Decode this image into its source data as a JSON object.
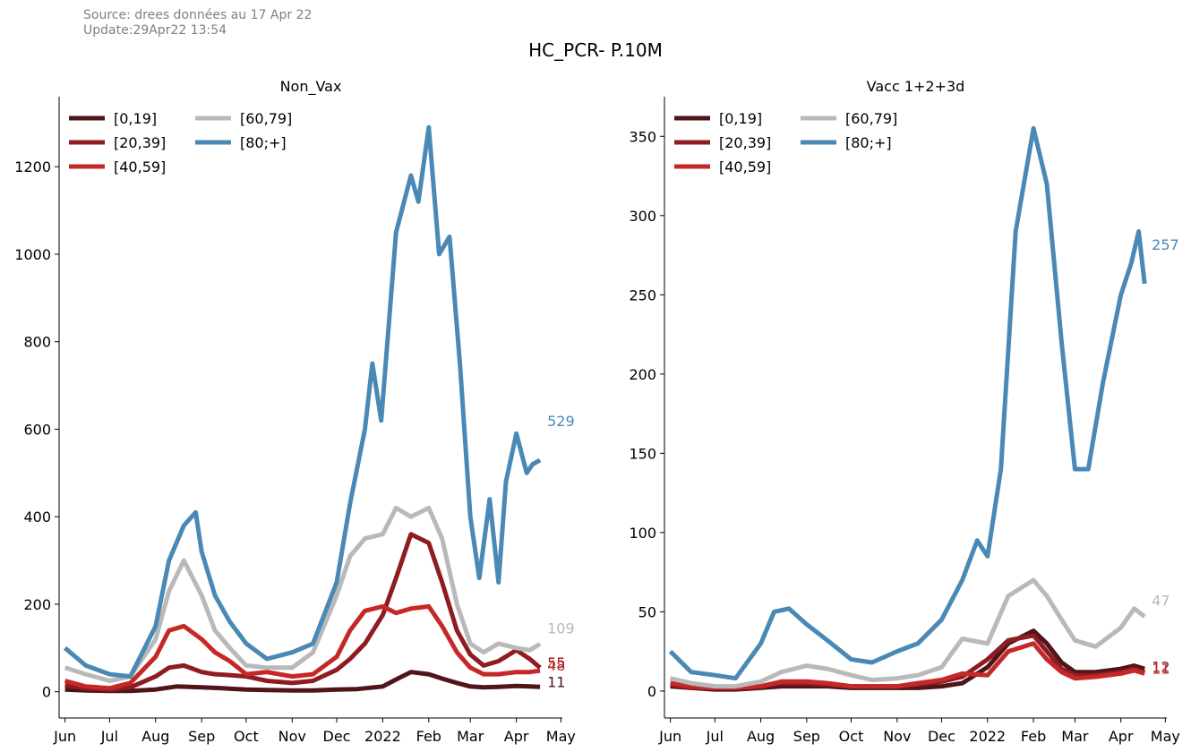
{
  "header": {
    "source_line": "Source: drees données au 17 Apr 22",
    "update_line": "Update:29Apr22 13:54",
    "title": "HC_PCR- P.10M"
  },
  "colors": {
    "[0,19]": "#4f1519",
    "[20,39]": "#8e1c21",
    "[40,59]": "#c62828",
    "[60,79]": "#b9b9b9",
    "[80;+]": "#4a89b5"
  },
  "chart_data": [
    {
      "type": "line",
      "title": "Non_Vax",
      "x_tick_labels": [
        "Jun",
        "Jul",
        "Aug",
        "Sep",
        "Oct",
        "Nov",
        "Dec",
        "2022",
        "Feb",
        "Mar",
        "Apr",
        "May"
      ],
      "x_range": [
        "2021-05-28",
        "2022-05-02"
      ],
      "y_ticks": [
        0,
        200,
        400,
        600,
        800,
        1000,
        1200
      ],
      "ylim": [
        -60,
        1360
      ],
      "legend_position": "top-left",
      "grid": false,
      "series": [
        {
          "name": "[0,19]",
          "end_label": "11",
          "x": [
            "2021-06-01",
            "2021-06-15",
            "2021-07-01",
            "2021-07-15",
            "2021-08-01",
            "2021-08-15",
            "2021-09-01",
            "2021-09-15",
            "2021-10-01",
            "2021-10-15",
            "2021-11-01",
            "2021-11-15",
            "2021-12-01",
            "2021-12-15",
            "2022-01-01",
            "2022-01-10",
            "2022-01-20",
            "2022-02-01",
            "2022-02-10",
            "2022-02-20",
            "2022-03-01",
            "2022-03-10",
            "2022-03-20",
            "2022-04-01",
            "2022-04-10",
            "2022-04-17"
          ],
          "y": [
            5,
            3,
            2,
            2,
            5,
            12,
            10,
            8,
            5,
            4,
            3,
            3,
            5,
            6,
            12,
            28,
            45,
            40,
            30,
            20,
            12,
            10,
            11,
            13,
            12,
            11
          ]
        },
        {
          "name": "[20,39]",
          "end_label": "55",
          "x": [
            "2021-06-01",
            "2021-06-15",
            "2021-07-01",
            "2021-07-15",
            "2021-08-01",
            "2021-08-10",
            "2021-08-20",
            "2021-09-01",
            "2021-09-10",
            "2021-09-20",
            "2021-10-01",
            "2021-10-15",
            "2021-11-01",
            "2021-11-15",
            "2021-12-01",
            "2021-12-10",
            "2021-12-20",
            "2022-01-01",
            "2022-01-10",
            "2022-01-20",
            "2022-02-01",
            "2022-02-10",
            "2022-02-20",
            "2022-03-01",
            "2022-03-10",
            "2022-03-20",
            "2022-04-01",
            "2022-04-10",
            "2022-04-17"
          ],
          "y": [
            15,
            8,
            5,
            10,
            35,
            55,
            60,
            45,
            40,
            38,
            35,
            25,
            20,
            25,
            50,
            75,
            110,
            175,
            260,
            360,
            340,
            250,
            140,
            85,
            60,
            70,
            95,
            75,
            55
          ]
        },
        {
          "name": "[40,59]",
          "end_label": "48",
          "x": [
            "2021-06-01",
            "2021-06-15",
            "2021-07-01",
            "2021-07-15",
            "2021-08-01",
            "2021-08-10",
            "2021-08-20",
            "2021-09-01",
            "2021-09-10",
            "2021-09-20",
            "2021-10-01",
            "2021-10-15",
            "2021-11-01",
            "2021-11-15",
            "2021-12-01",
            "2021-12-10",
            "2021-12-20",
            "2022-01-01",
            "2022-01-10",
            "2022-01-20",
            "2022-02-01",
            "2022-02-10",
            "2022-02-20",
            "2022-03-01",
            "2022-03-10",
            "2022-03-20",
            "2022-04-01",
            "2022-04-10",
            "2022-04-17"
          ],
          "y": [
            25,
            12,
            8,
            20,
            80,
            140,
            150,
            120,
            90,
            70,
            40,
            45,
            35,
            40,
            80,
            140,
            185,
            195,
            180,
            190,
            195,
            150,
            90,
            55,
            40,
            40,
            45,
            45,
            48
          ]
        },
        {
          "name": "[60,79]",
          "end_label": "109",
          "x": [
            "2021-06-01",
            "2021-06-15",
            "2021-07-01",
            "2021-07-15",
            "2021-08-01",
            "2021-08-10",
            "2021-08-20",
            "2021-09-01",
            "2021-09-10",
            "2021-09-20",
            "2021-10-01",
            "2021-10-15",
            "2021-11-01",
            "2021-11-15",
            "2021-12-01",
            "2021-12-10",
            "2021-12-20",
            "2022-01-01",
            "2022-01-10",
            "2022-01-20",
            "2022-02-01",
            "2022-02-10",
            "2022-02-20",
            "2022-03-01",
            "2022-03-10",
            "2022-03-20",
            "2022-04-01",
            "2022-04-10",
            "2022-04-17"
          ],
          "y": [
            55,
            40,
            25,
            35,
            120,
            230,
            300,
            220,
            140,
            100,
            60,
            55,
            55,
            90,
            220,
            310,
            350,
            360,
            420,
            400,
            420,
            350,
            200,
            110,
            90,
            110,
            100,
            95,
            109
          ]
        },
        {
          "name": "[80;+]",
          "end_label": "529",
          "x": [
            "2021-06-01",
            "2021-06-15",
            "2021-07-01",
            "2021-07-15",
            "2021-08-01",
            "2021-08-10",
            "2021-08-20",
            "2021-08-28",
            "2021-09-01",
            "2021-09-10",
            "2021-09-20",
            "2021-10-01",
            "2021-10-15",
            "2021-11-01",
            "2021-11-15",
            "2021-12-01",
            "2021-12-10",
            "2021-12-20",
            "2021-12-25",
            "2021-12-31",
            "2022-01-10",
            "2022-01-20",
            "2022-01-25",
            "2022-02-01",
            "2022-02-08",
            "2022-02-15",
            "2022-02-22",
            "2022-03-01",
            "2022-03-07",
            "2022-03-14",
            "2022-03-20",
            "2022-03-25",
            "2022-04-01",
            "2022-04-08",
            "2022-04-12",
            "2022-04-17"
          ],
          "y": [
            100,
            60,
            40,
            35,
            150,
            300,
            380,
            410,
            320,
            220,
            160,
            110,
            75,
            90,
            110,
            250,
            430,
            600,
            750,
            620,
            1050,
            1180,
            1120,
            1290,
            1000,
            1040,
            750,
            400,
            260,
            440,
            250,
            480,
            590,
            500,
            520,
            529
          ]
        }
      ]
    },
    {
      "type": "line",
      "title": "Vacc 1+2+3d",
      "x_tick_labels": [
        "Jun",
        "Jul",
        "Aug",
        "Sep",
        "Oct",
        "Nov",
        "Dec",
        "2022",
        "Feb",
        "Mar",
        "Apr",
        "May"
      ],
      "x_range": [
        "2021-05-28",
        "2022-05-02"
      ],
      "y_ticks": [
        0,
        50,
        100,
        150,
        200,
        250,
        300,
        350
      ],
      "ylim": [
        -17,
        375
      ],
      "legend_position": "top-left",
      "grid": false,
      "series": [
        {
          "name": "[0,19]",
          "end_label": "",
          "x": [
            "2021-06-01",
            "2021-06-15",
            "2021-07-01",
            "2021-07-15",
            "2021-08-01",
            "2021-08-15",
            "2021-09-01",
            "2021-09-15",
            "2021-10-01",
            "2021-10-15",
            "2021-11-01",
            "2021-11-15",
            "2021-12-01",
            "2021-12-15",
            "2022-01-01",
            "2022-01-15",
            "2022-02-01",
            "2022-02-10",
            "2022-02-20",
            "2022-03-01",
            "2022-03-15",
            "2022-04-01",
            "2022-04-10",
            "2022-04-17"
          ],
          "y": [
            3,
            2,
            1,
            1,
            2,
            3,
            3,
            3,
            2,
            2,
            2,
            2,
            3,
            5,
            15,
            30,
            38,
            30,
            18,
            12,
            12,
            14,
            16,
            14
          ]
        },
        {
          "name": "[20,39]",
          "end_label": "12",
          "x": [
            "2021-06-01",
            "2021-06-15",
            "2021-07-01",
            "2021-07-15",
            "2021-08-01",
            "2021-08-15",
            "2021-09-01",
            "2021-09-15",
            "2021-10-01",
            "2021-10-15",
            "2021-11-01",
            "2021-11-15",
            "2021-12-01",
            "2021-12-15",
            "2022-01-01",
            "2022-01-15",
            "2022-02-01",
            "2022-02-10",
            "2022-02-20",
            "2022-03-01",
            "2022-03-15",
            "2022-04-01",
            "2022-04-10",
            "2022-04-17"
          ],
          "y": [
            4,
            2,
            2,
            2,
            3,
            5,
            5,
            4,
            3,
            3,
            3,
            4,
            6,
            9,
            20,
            32,
            35,
            25,
            14,
            10,
            10,
            12,
            14,
            12
          ]
        },
        {
          "name": "[40,59]",
          "end_label": "11",
          "x": [
            "2021-06-01",
            "2021-06-15",
            "2021-07-01",
            "2021-07-15",
            "2021-08-01",
            "2021-08-15",
            "2021-09-01",
            "2021-09-15",
            "2021-10-01",
            "2021-10-15",
            "2021-11-01",
            "2021-11-15",
            "2021-12-01",
            "2021-12-15",
            "2022-01-01",
            "2022-01-15",
            "2022-02-01",
            "2022-02-10",
            "2022-02-20",
            "2022-03-01",
            "2022-03-15",
            "2022-04-01",
            "2022-04-10",
            "2022-04-17"
          ],
          "y": [
            5,
            3,
            2,
            2,
            3,
            6,
            6,
            5,
            3,
            3,
            3,
            5,
            7,
            11,
            10,
            25,
            30,
            20,
            12,
            8,
            9,
            11,
            13,
            11
          ]
        },
        {
          "name": "[60,79]",
          "end_label": "47",
          "x": [
            "2021-06-01",
            "2021-06-15",
            "2021-07-01",
            "2021-07-15",
            "2021-08-01",
            "2021-08-15",
            "2021-09-01",
            "2021-09-15",
            "2021-10-01",
            "2021-10-15",
            "2021-11-01",
            "2021-11-15",
            "2021-12-01",
            "2021-12-15",
            "2022-01-01",
            "2022-01-15",
            "2022-02-01",
            "2022-02-10",
            "2022-02-20",
            "2022-03-01",
            "2022-03-15",
            "2022-04-01",
            "2022-04-10",
            "2022-04-17"
          ],
          "y": [
            8,
            5,
            3,
            3,
            6,
            12,
            16,
            14,
            10,
            7,
            8,
            10,
            15,
            33,
            30,
            60,
            70,
            60,
            45,
            32,
            28,
            40,
            52,
            47
          ]
        },
        {
          "name": "[80;+]",
          "end_label": "257",
          "x": [
            "2021-06-01",
            "2021-06-15",
            "2021-07-01",
            "2021-07-15",
            "2021-08-01",
            "2021-08-10",
            "2021-08-20",
            "2021-09-01",
            "2021-09-15",
            "2021-10-01",
            "2021-10-15",
            "2021-11-01",
            "2021-11-15",
            "2021-12-01",
            "2021-12-15",
            "2021-12-25",
            "2022-01-01",
            "2022-01-10",
            "2022-01-20",
            "2022-02-01",
            "2022-02-10",
            "2022-02-20",
            "2022-03-01",
            "2022-03-10",
            "2022-03-20",
            "2022-04-01",
            "2022-04-08",
            "2022-04-13",
            "2022-04-17"
          ],
          "y": [
            25,
            12,
            10,
            8,
            30,
            50,
            52,
            42,
            32,
            20,
            18,
            25,
            30,
            45,
            70,
            95,
            85,
            140,
            290,
            355,
            320,
            220,
            140,
            140,
            195,
            250,
            270,
            290,
            257
          ]
        }
      ]
    }
  ]
}
